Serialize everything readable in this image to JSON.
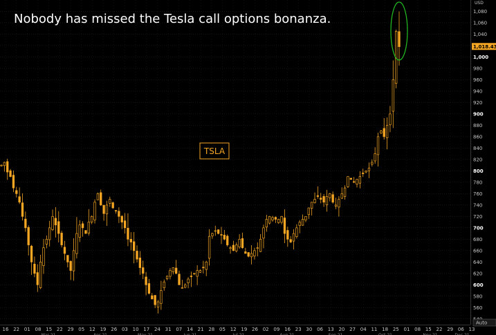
{
  "headline": "Nobody has missed the Tesla call options bonanza.",
  "colors": {
    "background": "#000000",
    "candle": "#f5a623",
    "grid": "#2a2a2a",
    "highlight_ellipse": "#22c022",
    "price_tag_bg": "#f5a623",
    "ticker_tag": "#f5a623"
  },
  "chart_data": {
    "type": "candlestick",
    "ticker_label": "TSLA",
    "y_unit": "USD",
    "ylim": [
      530,
      1100
    ],
    "y_ticks": [
      540,
      560,
      580,
      600,
      620,
      640,
      660,
      680,
      700,
      720,
      740,
      760,
      780,
      800,
      820,
      840,
      860,
      880,
      900,
      920,
      940,
      960,
      980,
      1000,
      1020,
      1040,
      1060,
      1080
    ],
    "y_ticks_bold": [
      600,
      700,
      800,
      900,
      1000
    ],
    "y_tick_labels": [
      "540",
      "560",
      "580",
      "600",
      "620",
      "640",
      "660",
      "680",
      "700",
      "720",
      "740",
      "760",
      "780",
      "800",
      "820",
      "840",
      "860",
      "880",
      "900",
      "920",
      "940",
      "960",
      "980",
      "1,000",
      "1,020",
      "1,040",
      "1,060",
      "1,080"
    ],
    "last_price": 1018.43,
    "last_price_label": "1,018.4300",
    "auto_label": "Auto",
    "x_day_ticks": [
      "16",
      "22",
      "01",
      "08",
      "15",
      "22",
      "29",
      "05",
      "12",
      "19",
      "26",
      "03",
      "10",
      "17",
      "24",
      "31",
      "07",
      "14",
      "21",
      "28",
      "05",
      "12",
      "19",
      "26",
      "02",
      "09",
      "16",
      "23",
      "30",
      "06",
      "13",
      "20",
      "27",
      "04",
      "11",
      "18",
      "25",
      "01",
      "08",
      "15",
      "22",
      "29",
      "06",
      "13"
    ],
    "x_month_ticks": [
      "Mar 21",
      "Apr 21",
      "May 21",
      "Jun 21",
      "Jul 21",
      "Aug 21",
      "Sep 21",
      "Oct 21",
      "Nov 21",
      "Dec 21"
    ],
    "x_month_positions": [
      70,
      145,
      210,
      275,
      345,
      415,
      485,
      557,
      622,
      668
    ],
    "highlight": {
      "description_none": ""
    },
    "close_path": [
      [
        0,
        810
      ],
      [
        1,
        815
      ],
      [
        2,
        798
      ],
      [
        3,
        790
      ],
      [
        4,
        770
      ],
      [
        5,
        760
      ],
      [
        6,
        745
      ],
      [
        7,
        720
      ],
      [
        8,
        700
      ],
      [
        9,
        670
      ],
      [
        10,
        640
      ],
      [
        11,
        620
      ],
      [
        12,
        600
      ],
      [
        13,
        640
      ],
      [
        14,
        665
      ],
      [
        15,
        680
      ],
      [
        16,
        700
      ],
      [
        17,
        720
      ],
      [
        18,
        705
      ],
      [
        19,
        690
      ],
      [
        20,
        670
      ],
      [
        21,
        655
      ],
      [
        22,
        640
      ],
      [
        23,
        625
      ],
      [
        24,
        660
      ],
      [
        25,
        690
      ],
      [
        26,
        705
      ],
      [
        27,
        700
      ],
      [
        28,
        690
      ],
      [
        29,
        710
      ],
      [
        30,
        720
      ],
      [
        31,
        745
      ],
      [
        32,
        760
      ],
      [
        33,
        740
      ],
      [
        34,
        725
      ],
      [
        35,
        740
      ],
      [
        36,
        750
      ],
      [
        37,
        735
      ],
      [
        38,
        730
      ],
      [
        39,
        720
      ],
      [
        40,
        710
      ],
      [
        41,
        700
      ],
      [
        42,
        680
      ],
      [
        43,
        675
      ],
      [
        44,
        660
      ],
      [
        45,
        645
      ],
      [
        46,
        630
      ],
      [
        47,
        620
      ],
      [
        48,
        600
      ],
      [
        49,
        585
      ],
      [
        50,
        575
      ],
      [
        51,
        565
      ],
      [
        52,
        570
      ],
      [
        53,
        590
      ],
      [
        54,
        605
      ],
      [
        55,
        615
      ],
      [
        56,
        625
      ],
      [
        57,
        630
      ],
      [
        58,
        620
      ],
      [
        59,
        600
      ],
      [
        60,
        595
      ],
      [
        61,
        600
      ],
      [
        62,
        610
      ],
      [
        63,
        615
      ],
      [
        64,
        620
      ],
      [
        65,
        625
      ],
      [
        66,
        625
      ],
      [
        67,
        630
      ],
      [
        68,
        640
      ],
      [
        69,
        685
      ],
      [
        70,
        690
      ],
      [
        71,
        695
      ],
      [
        72,
        690
      ],
      [
        73,
        688
      ],
      [
        74,
        680
      ],
      [
        75,
        670
      ],
      [
        76,
        665
      ],
      [
        77,
        660
      ],
      [
        78,
        670
      ],
      [
        79,
        680
      ],
      [
        80,
        665
      ],
      [
        81,
        655
      ],
      [
        82,
        650
      ],
      [
        83,
        655
      ],
      [
        84,
        660
      ],
      [
        85,
        665
      ],
      [
        86,
        680
      ],
      [
        87,
        700
      ],
      [
        88,
        715
      ],
      [
        89,
        720
      ],
      [
        90,
        718
      ],
      [
        91,
        715
      ],
      [
        92,
        715
      ],
      [
        93,
        720
      ],
      [
        94,
        690
      ],
      [
        95,
        680
      ],
      [
        96,
        675
      ],
      [
        97,
        690
      ],
      [
        98,
        700
      ],
      [
        99,
        710
      ],
      [
        100,
        715
      ],
      [
        101,
        720
      ],
      [
        102,
        735
      ],
      [
        103,
        745
      ],
      [
        104,
        750
      ],
      [
        105,
        755
      ],
      [
        106,
        750
      ],
      [
        107,
        745
      ],
      [
        108,
        755
      ],
      [
        109,
        760
      ],
      [
        110,
        745
      ],
      [
        111,
        740
      ],
      [
        112,
        750
      ],
      [
        113,
        760
      ],
      [
        114,
        770
      ],
      [
        115,
        790
      ],
      [
        116,
        785
      ],
      [
        117,
        780
      ],
      [
        118,
        785
      ],
      [
        119,
        790
      ],
      [
        120,
        795
      ],
      [
        121,
        800
      ],
      [
        122,
        805
      ],
      [
        123,
        815
      ],
      [
        124,
        830
      ],
      [
        125,
        860
      ],
      [
        126,
        870
      ],
      [
        127,
        860
      ],
      [
        128,
        880
      ],
      [
        129,
        900
      ],
      [
        130,
        960
      ],
      [
        131,
        1045
      ],
      [
        132,
        1018
      ]
    ]
  }
}
